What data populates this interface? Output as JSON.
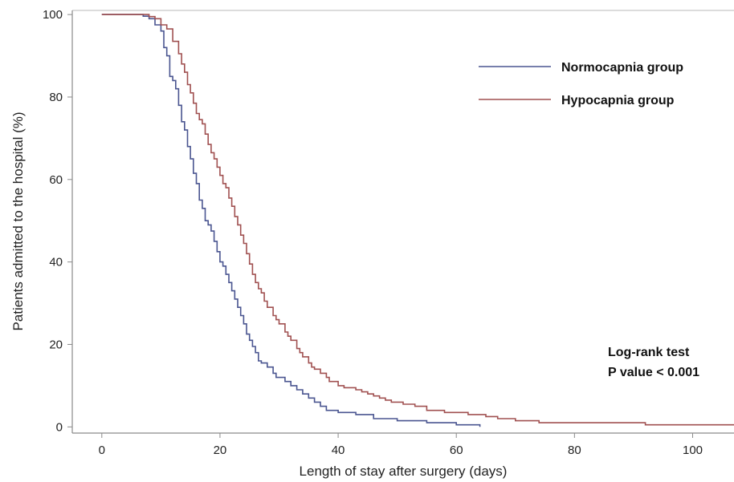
{
  "chart_data": {
    "type": "line",
    "step": true,
    "xlabel": "Length of stay after surgery (days)",
    "ylabel": "Patients admitted to the hospital (%)",
    "xlim": [
      -5,
      107
    ],
    "ylim": [
      -1.5,
      101
    ],
    "xticks": [
      0,
      20,
      40,
      60,
      80,
      100
    ],
    "yticks": [
      0,
      20,
      40,
      60,
      80,
      100
    ],
    "grid": false,
    "legend_position": "top-right",
    "annotation": [
      "Log-rank test",
      "P value < 0.001"
    ],
    "series": [
      {
        "name": "Normocapnia group",
        "color": "#4a5590",
        "points": [
          [
            0,
            100
          ],
          [
            7,
            99.6
          ],
          [
            8,
            99
          ],
          [
            9,
            97.5
          ],
          [
            10,
            96
          ],
          [
            10.5,
            92
          ],
          [
            11,
            90
          ],
          [
            11.5,
            85
          ],
          [
            12,
            84
          ],
          [
            12.5,
            82
          ],
          [
            13,
            78
          ],
          [
            13.5,
            74
          ],
          [
            14,
            72
          ],
          [
            14.5,
            68
          ],
          [
            15,
            65
          ],
          [
            15.5,
            61.5
          ],
          [
            16,
            59
          ],
          [
            16.5,
            55
          ],
          [
            17,
            53
          ],
          [
            17.5,
            50
          ],
          [
            18,
            49
          ],
          [
            18.5,
            47.5
          ],
          [
            19,
            45
          ],
          [
            19.5,
            42.5
          ],
          [
            20,
            40
          ],
          [
            20.5,
            39
          ],
          [
            21,
            37
          ],
          [
            21.5,
            35
          ],
          [
            22,
            33
          ],
          [
            22.5,
            31
          ],
          [
            23,
            29
          ],
          [
            23.5,
            27
          ],
          [
            24,
            25
          ],
          [
            24.5,
            22.5
          ],
          [
            25,
            21
          ],
          [
            25.5,
            19.5
          ],
          [
            26,
            18
          ],
          [
            26.5,
            16
          ],
          [
            27,
            15.5
          ],
          [
            28,
            14.5
          ],
          [
            29,
            13
          ],
          [
            29.5,
            12
          ],
          [
            31,
            11
          ],
          [
            32,
            10
          ],
          [
            33,
            9
          ],
          [
            34,
            8
          ],
          [
            35,
            7
          ],
          [
            36,
            6
          ],
          [
            37,
            5
          ],
          [
            38,
            4
          ],
          [
            40,
            3.5
          ],
          [
            43,
            3
          ],
          [
            46,
            2
          ],
          [
            50,
            1.5
          ],
          [
            55,
            1
          ],
          [
            60,
            0.5
          ],
          [
            64,
            0
          ]
        ]
      },
      {
        "name": "Hypocapnia group",
        "color": "#a05050",
        "points": [
          [
            0,
            100
          ],
          [
            8,
            99.5
          ],
          [
            9,
            99
          ],
          [
            10,
            97.5
          ],
          [
            11,
            96.5
          ],
          [
            12,
            93.5
          ],
          [
            13,
            90.5
          ],
          [
            13.5,
            88
          ],
          [
            14,
            86
          ],
          [
            14.5,
            83
          ],
          [
            15,
            81
          ],
          [
            15.5,
            78.5
          ],
          [
            16,
            76
          ],
          [
            16.5,
            74.5
          ],
          [
            17,
            73.5
          ],
          [
            17.5,
            71
          ],
          [
            18,
            68.5
          ],
          [
            18.5,
            66.5
          ],
          [
            19,
            65
          ],
          [
            19.5,
            63
          ],
          [
            20,
            61
          ],
          [
            20.5,
            59
          ],
          [
            21,
            58
          ],
          [
            21.5,
            55.5
          ],
          [
            22,
            53.5
          ],
          [
            22.5,
            51
          ],
          [
            23,
            49
          ],
          [
            23.5,
            46.5
          ],
          [
            24,
            44.5
          ],
          [
            24.5,
            42
          ],
          [
            25,
            39.5
          ],
          [
            25.5,
            37
          ],
          [
            26,
            35
          ],
          [
            26.5,
            33.5
          ],
          [
            27,
            32.5
          ],
          [
            27.5,
            30.5
          ],
          [
            28,
            29
          ],
          [
            29,
            27
          ],
          [
            29.5,
            26
          ],
          [
            30,
            25
          ],
          [
            31,
            23
          ],
          [
            31.5,
            22
          ],
          [
            32,
            21
          ],
          [
            33,
            19
          ],
          [
            33.5,
            18
          ],
          [
            34,
            17
          ],
          [
            35,
            15.5
          ],
          [
            35.5,
            14.5
          ],
          [
            36,
            14
          ],
          [
            37,
            13
          ],
          [
            38,
            12
          ],
          [
            38.5,
            11
          ],
          [
            40,
            10
          ],
          [
            41,
            9.5
          ],
          [
            43,
            9
          ],
          [
            44,
            8.5
          ],
          [
            45,
            8
          ],
          [
            46,
            7.5
          ],
          [
            47,
            7
          ],
          [
            48,
            6.5
          ],
          [
            49,
            6
          ],
          [
            51,
            5.5
          ],
          [
            53,
            5
          ],
          [
            55,
            4
          ],
          [
            58,
            3.5
          ],
          [
            62,
            3
          ],
          [
            65,
            2.5
          ],
          [
            67,
            2
          ],
          [
            70,
            1.5
          ],
          [
            74,
            1
          ],
          [
            78,
            1
          ],
          [
            92,
            0.5
          ],
          [
            107,
            0.5
          ]
        ]
      }
    ]
  }
}
